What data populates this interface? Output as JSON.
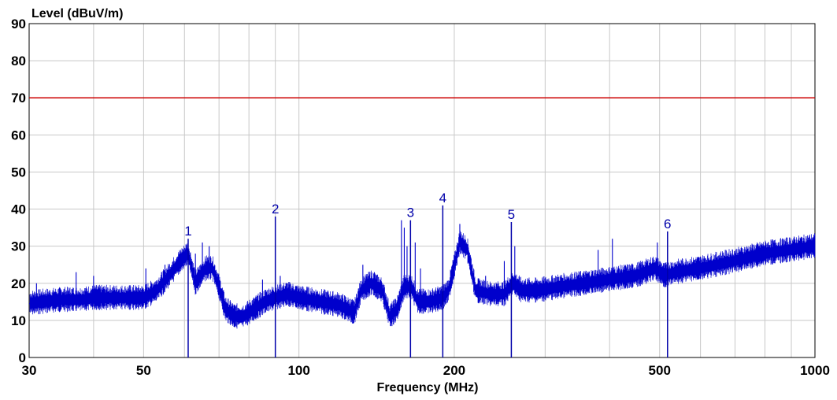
{
  "chart_data": {
    "type": "line",
    "title": "",
    "ylabel": "Level (dBuV/m)",
    "xlabel": "Frequency (MHz)",
    "x_scale": "log",
    "xlim": [
      30,
      1000
    ],
    "ylim": [
      0,
      90
    ],
    "y_ticks": [
      0,
      10,
      20,
      30,
      40,
      50,
      60,
      70,
      80,
      90
    ],
    "x_tick_labels": [
      30,
      50,
      100,
      200,
      500,
      1000
    ],
    "x_gridlines": [
      30,
      40,
      50,
      60,
      70,
      80,
      90,
      100,
      200,
      300,
      400,
      500,
      600,
      700,
      800,
      900,
      1000
    ],
    "grid": true,
    "colors": {
      "trace": "#0000cc",
      "limit": "#cc0000",
      "marker": "#0000aa",
      "grid": "#c8c8c8"
    },
    "series": [
      {
        "name": "",
        "role": "limit",
        "x": [
          30,
          1000
        ],
        "y": [
          70,
          70
        ]
      },
      {
        "name": "",
        "role": "measurement",
        "x": [
          30,
          32,
          35,
          38,
          40,
          45,
          50,
          53,
          56,
          59,
          61,
          63,
          66,
          68,
          70,
          72,
          75,
          78,
          82,
          86,
          90,
          95,
          100,
          110,
          120,
          128,
          132,
          138,
          145,
          150,
          155,
          160,
          165,
          170,
          180,
          190,
          195,
          205,
          212,
          220,
          235,
          250,
          260,
          270,
          290,
          320,
          360,
          400,
          450,
          490,
          510,
          540,
          600,
          700,
          800,
          900,
          1000
        ],
        "y": [
          14.5,
          15,
          15.5,
          15.5,
          16,
          16,
          16,
          18,
          22,
          26,
          28,
          20,
          24,
          24,
          19,
          13,
          11,
          11,
          13,
          15,
          16,
          17,
          16,
          15,
          14,
          12,
          18,
          20,
          18,
          11,
          13,
          19,
          19,
          15,
          15,
          16,
          18,
          31,
          29,
          18,
          17,
          17,
          20,
          18,
          18,
          19,
          20,
          21,
          22,
          24,
          22,
          23,
          24,
          26,
          28,
          29,
          30
        ]
      }
    ],
    "noise": [
      {
        "x": 31,
        "y": 20
      },
      {
        "x": 37,
        "y": 23
      },
      {
        "x": 40,
        "y": 22
      },
      {
        "x": 50.5,
        "y": 24
      },
      {
        "x": 55,
        "y": 25
      },
      {
        "x": 58,
        "y": 27
      },
      {
        "x": 60.5,
        "y": 30
      },
      {
        "x": 63,
        "y": 28
      },
      {
        "x": 65,
        "y": 31
      },
      {
        "x": 67,
        "y": 30
      },
      {
        "x": 85,
        "y": 21
      },
      {
        "x": 92,
        "y": 22
      },
      {
        "x": 133,
        "y": 25
      },
      {
        "x": 140,
        "y": 23
      },
      {
        "x": 158,
        "y": 37
      },
      {
        "x": 160,
        "y": 35
      },
      {
        "x": 162,
        "y": 30
      },
      {
        "x": 168,
        "y": 31
      },
      {
        "x": 172,
        "y": 24
      },
      {
        "x": 205,
        "y": 36
      },
      {
        "x": 230,
        "y": 22
      },
      {
        "x": 250,
        "y": 26
      },
      {
        "x": 262,
        "y": 30
      },
      {
        "x": 380,
        "y": 29
      },
      {
        "x": 405,
        "y": 32
      },
      {
        "x": 495,
        "y": 31
      },
      {
        "x": 600,
        "y": 27
      },
      {
        "x": 800,
        "y": 29
      },
      {
        "x": 980,
        "y": 31
      }
    ],
    "markers": [
      {
        "label": "1",
        "x": 61,
        "y": 32
      },
      {
        "label": "2",
        "x": 90,
        "y": 38
      },
      {
        "label": "3",
        "x": 164.5,
        "y": 37
      },
      {
        "label": "4",
        "x": 190,
        "y": 41
      },
      {
        "label": "5",
        "x": 258,
        "y": 36.5
      },
      {
        "label": "6",
        "x": 518,
        "y": 34
      }
    ]
  }
}
